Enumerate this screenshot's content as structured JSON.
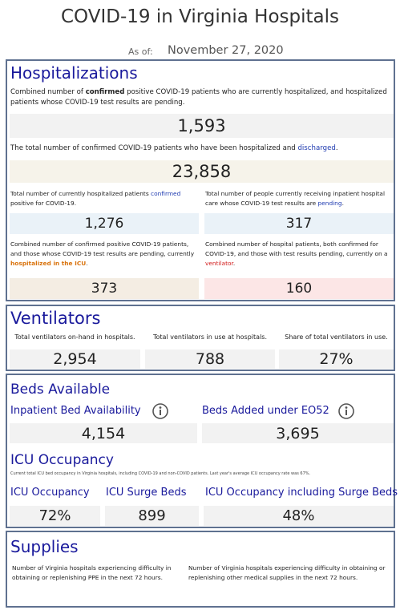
{
  "header": {
    "title": "COVID-19 in Virginia Hospitals",
    "as_of_label": "As of:",
    "date": "November 27, 2020"
  },
  "hospitalizations": {
    "heading": "Hospitalizations",
    "current_desc": [
      "Combined number of ",
      "confirmed",
      " positive COVID-19 patients who are currently hospitalized, and hospitalized patients whose COVID-19 test results are pending."
    ],
    "current_value": "1,593",
    "discharged_desc": [
      "The total number of confirmed COVID-19 patients who have been hospitalized and ",
      "discharged",
      "."
    ],
    "discharged_value": "23,858",
    "confirmed_desc": [
      "Total number of currently hospitalized patients ",
      "confirmed",
      " positive for COVID-19."
    ],
    "confirmed_value": "1,276",
    "pending_desc": [
      "Total number of people currently receiving inpatient hospital care whose COVID-19 test results are ",
      "pending",
      "."
    ],
    "pending_value": "317",
    "icu_desc": [
      "Combined number of confirmed positive COVID-19 patients, and those whose COVID-19 test results are pending, currently ",
      "hospitalized in the ICU",
      "."
    ],
    "icu_value": "373",
    "vent_desc": [
      "Combined number of hospital patients, both confirmed for COVID-19, and those with test results pending, currently on a ",
      "ventilator",
      "."
    ],
    "vent_value": "160"
  },
  "ventilators": {
    "heading": "Ventilators",
    "items": [
      {
        "label": "Total ventilators on-hand in hospitals.",
        "value": "2,954"
      },
      {
        "label": "Total ventilators in use at hospitals.",
        "value": "788"
      },
      {
        "label": "Share of total ventilators in use.",
        "value": "27%"
      }
    ]
  },
  "beds": {
    "heading": "Beds Available",
    "items": [
      {
        "label": "Inpatient Bed Availability",
        "value": "4,154"
      },
      {
        "label": "Beds Added under EO52",
        "value": "3,695"
      }
    ],
    "icu_heading": "ICU Occupancy",
    "icu_note": "Current total ICU bed occupancy in Virginia hospitals, including COVID-19 and non-COVID patients. Last year's average ICU occupancy rate was 67%.",
    "icu_items": [
      {
        "label": "ICU Occupancy",
        "value": "72%"
      },
      {
        "label": "ICU Surge Beds",
        "value": "899"
      },
      {
        "label": "ICU Occupancy including Surge Beds",
        "value": "48%"
      }
    ]
  },
  "supplies": {
    "heading": "Supplies",
    "ppe_desc": "Number of Virginia hospitals experiencing difficulty in obtaining or replenishing PPE in the next 72 hours.",
    "other_desc": "Number of Virginia hospitals experiencing difficulty in obtaining or replenishing other medical supplies in the next 72 hours."
  }
}
